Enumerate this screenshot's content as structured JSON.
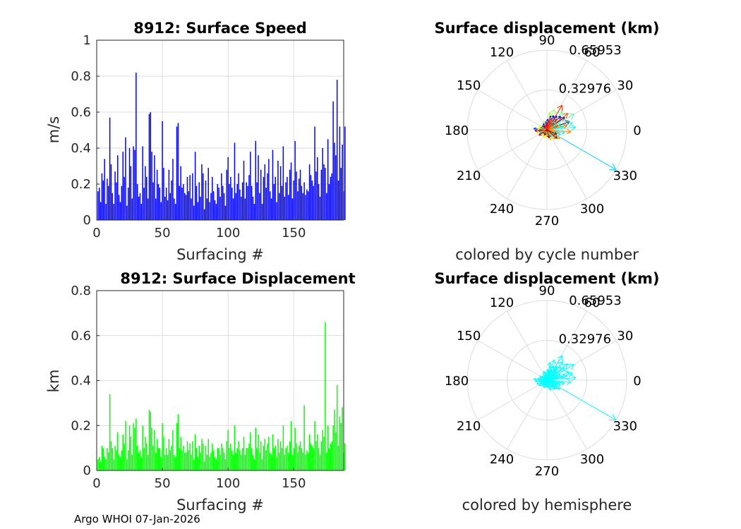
{
  "figure": {
    "footer": "Argo WHOI 07-Jan-2026",
    "colors": {
      "speed_bar": "#0000ff",
      "disp_bar": "#00ff00",
      "hemisphere_arrow": "#00ffff",
      "grid": "#dcdcdc"
    }
  },
  "chart_data": [
    {
      "id": "speed",
      "type": "bar",
      "title": "8912: Surface Speed",
      "xlabel": "Surfacing #",
      "ylabel": "m/s",
      "xlim": [
        0,
        188
      ],
      "ylim": [
        0,
        1
      ],
      "xticks": [
        0,
        50,
        100,
        150
      ],
      "yticks": [
        0,
        0.2,
        0.4,
        0.6,
        0.8,
        1
      ],
      "ytick_labels": [
        "0",
        "0.2",
        "0.4",
        "0.6",
        "0.8",
        "1"
      ],
      "grid": true,
      "values": [
        0.16,
        0.18,
        0.1,
        0.26,
        0.22,
        0.34,
        0.09,
        0.23,
        0.19,
        0.57,
        0.31,
        0.15,
        0.09,
        0.27,
        0.21,
        0.36,
        0.14,
        0.1,
        0.19,
        0.38,
        0.24,
        0.46,
        0.08,
        0.18,
        0.4,
        0.3,
        0.12,
        0.41,
        0.39,
        0.82,
        0.2,
        0.13,
        0.15,
        0.09,
        0.41,
        0.18,
        0.3,
        0.24,
        0.12,
        0.59,
        0.6,
        0.38,
        0.21,
        0.36,
        0.12,
        0.28,
        0.2,
        0.18,
        0.1,
        0.55,
        0.29,
        0.13,
        0.18,
        0.11,
        0.28,
        0.15,
        0.22,
        0.34,
        0.12,
        0.09,
        0.52,
        0.54,
        0.19,
        0.3,
        0.18,
        0.2,
        0.15,
        0.14,
        0.24,
        0.16,
        0.25,
        0.12,
        0.26,
        0.08,
        0.38,
        0.19,
        0.1,
        0.21,
        0.13,
        0.31,
        0.26,
        0.06,
        0.22,
        0.12,
        0.29,
        0.1,
        0.15,
        0.24,
        0.16,
        0.11,
        0.09,
        0.2,
        0.18,
        0.13,
        0.26,
        0.19,
        0.15,
        0.08,
        0.28,
        0.35,
        0.2,
        0.24,
        0.18,
        0.12,
        0.43,
        0.15,
        0.2,
        0.26,
        0.17,
        0.13,
        0.21,
        0.33,
        0.12,
        0.21,
        0.19,
        0.25,
        0.38,
        0.19,
        0.13,
        0.09,
        0.44,
        0.21,
        0.36,
        0.15,
        0.28,
        0.09,
        0.24,
        0.31,
        0.18,
        0.26,
        0.34,
        0.16,
        0.12,
        0.39,
        0.2,
        0.24,
        0.1,
        0.33,
        0.15,
        0.3,
        0.19,
        0.41,
        0.13,
        0.21,
        0.24,
        0.14,
        0.28,
        0.32,
        0.12,
        0.22,
        0.44,
        0.27,
        0.16,
        0.23,
        0.28,
        0.19,
        0.15,
        0.21,
        0.14,
        0.17,
        0.16,
        0.31,
        0.25,
        0.22,
        0.19,
        0.52,
        0.27,
        0.35,
        0.2,
        0.13,
        0.28,
        0.4,
        0.31,
        0.29,
        0.15,
        0.45,
        0.2,
        0.24,
        0.26,
        0.66,
        0.43,
        0.36,
        0.78,
        0.22,
        0.52,
        0.29,
        0.42,
        0.16,
        0.52
      ]
    },
    {
      "id": "displacement",
      "type": "bar",
      "title": "8912: Surface Displacement",
      "xlabel": "Surfacing #",
      "ylabel": "km",
      "xlim": [
        0,
        188
      ],
      "ylim": [
        0,
        0.8
      ],
      "xticks": [
        0,
        50,
        100,
        150
      ],
      "yticks": [
        0,
        0.2,
        0.4,
        0.6,
        0.8
      ],
      "ytick_labels": [
        "0",
        "0.2",
        "0.4",
        "0.6",
        "0.8"
      ],
      "grid": true,
      "values": [
        0.05,
        0.06,
        0.04,
        0.11,
        0.1,
        0.06,
        0.05,
        0.1,
        0.08,
        0.34,
        0.13,
        0.1,
        0.05,
        0.11,
        0.09,
        0.17,
        0.07,
        0.06,
        0.09,
        0.16,
        0.12,
        0.22,
        0.05,
        0.09,
        0.2,
        0.15,
        0.07,
        0.21,
        0.19,
        0.23,
        0.11,
        0.08,
        0.09,
        0.06,
        0.2,
        0.1,
        0.15,
        0.12,
        0.07,
        0.27,
        0.26,
        0.19,
        0.11,
        0.18,
        0.08,
        0.14,
        0.1,
        0.1,
        0.06,
        0.21,
        0.15,
        0.07,
        0.1,
        0.07,
        0.14,
        0.09,
        0.11,
        0.18,
        0.07,
        0.06,
        0.21,
        0.25,
        0.1,
        0.15,
        0.09,
        0.11,
        0.08,
        0.08,
        0.13,
        0.09,
        0.12,
        0.07,
        0.13,
        0.05,
        0.16,
        0.1,
        0.06,
        0.11,
        0.08,
        0.14,
        0.12,
        0.04,
        0.11,
        0.07,
        0.14,
        0.06,
        0.08,
        0.12,
        0.09,
        0.06,
        0.05,
        0.1,
        0.1,
        0.07,
        0.12,
        0.1,
        0.08,
        0.05,
        0.13,
        0.18,
        0.1,
        0.12,
        0.09,
        0.07,
        0.2,
        0.08,
        0.1,
        0.13,
        0.09,
        0.07,
        0.1,
        0.15,
        0.07,
        0.1,
        0.1,
        0.12,
        0.17,
        0.1,
        0.07,
        0.05,
        0.19,
        0.1,
        0.16,
        0.08,
        0.13,
        0.05,
        0.11,
        0.14,
        0.09,
        0.12,
        0.15,
        0.08,
        0.07,
        0.16,
        0.1,
        0.11,
        0.06,
        0.14,
        0.08,
        0.13,
        0.1,
        0.2,
        0.07,
        0.1,
        0.11,
        0.08,
        0.13,
        0.22,
        0.07,
        0.1,
        0.19,
        0.12,
        0.08,
        0.11,
        0.13,
        0.1,
        0.08,
        0.29,
        0.07,
        0.09,
        0.08,
        0.16,
        0.12,
        0.11,
        0.1,
        0.22,
        0.13,
        0.16,
        0.1,
        0.07,
        0.13,
        0.18,
        0.15,
        0.66,
        0.08,
        0.2,
        0.1,
        0.12,
        0.13,
        0.2,
        0.27,
        0.17,
        0.38,
        0.11,
        0.24,
        0.21,
        0.28,
        0.08,
        0.12
      ]
    },
    {
      "id": "polar-cycle",
      "type": "polar",
      "title": "Surface displacement (km)",
      "caption": "colored by cycle number",
      "rmax": 0.65953,
      "rticks": [
        0.32976,
        0.65953
      ],
      "rtick_labels": [
        "0.32976",
        "0.65953"
      ],
      "angle_labels": [
        "0",
        "30",
        "60",
        "90",
        "120",
        "150",
        "180",
        "210",
        "240",
        "270",
        "300",
        "330"
      ],
      "color_mode": "cycle",
      "vectors": [
        {
          "angle": 20,
          "length": 0.2
        },
        {
          "angle": 35,
          "length": 0.18
        },
        {
          "angle": 45,
          "length": 0.16
        },
        {
          "angle": 55,
          "length": 0.14
        },
        {
          "angle": 65,
          "length": 0.13
        },
        {
          "angle": 75,
          "length": 0.12
        },
        {
          "angle": 85,
          "length": 0.09
        },
        {
          "angle": 100,
          "length": 0.07
        },
        {
          "angle": 120,
          "length": 0.06
        },
        {
          "angle": 140,
          "length": 0.05
        },
        {
          "angle": 160,
          "length": 0.06
        },
        {
          "angle": 175,
          "length": 0.11
        },
        {
          "angle": 190,
          "length": 0.07
        },
        {
          "angle": 205,
          "length": 0.06
        },
        {
          "angle": 220,
          "length": 0.05
        },
        {
          "angle": 240,
          "length": 0.04
        },
        {
          "angle": 260,
          "length": 0.05
        },
        {
          "angle": 280,
          "length": 0.06
        },
        {
          "angle": 300,
          "length": 0.07
        },
        {
          "angle": 315,
          "length": 0.08
        },
        {
          "angle": 330,
          "length": 0.66
        },
        {
          "angle": 340,
          "length": 0.12
        },
        {
          "angle": 350,
          "length": 0.15
        },
        {
          "angle": 5,
          "length": 0.24
        },
        {
          "angle": 10,
          "length": 0.14
        },
        {
          "angle": 15,
          "length": 0.22
        },
        {
          "angle": 25,
          "length": 0.12
        },
        {
          "angle": 30,
          "length": 0.26
        },
        {
          "angle": 40,
          "length": 0.1
        },
        {
          "angle": 50,
          "length": 0.2
        },
        {
          "angle": 60,
          "length": 0.09
        },
        {
          "angle": 70,
          "length": 0.18
        },
        {
          "angle": 80,
          "length": 0.15
        },
        {
          "angle": 110,
          "length": 0.08
        },
        {
          "angle": 150,
          "length": 0.07
        },
        {
          "angle": 170,
          "length": 0.08
        },
        {
          "angle": 200,
          "length": 0.09
        },
        {
          "angle": 230,
          "length": 0.06
        },
        {
          "angle": 250,
          "length": 0.07
        },
        {
          "angle": 270,
          "length": 0.06
        },
        {
          "angle": 290,
          "length": 0.09
        },
        {
          "angle": 310,
          "length": 0.1
        },
        {
          "angle": 325,
          "length": 0.13
        },
        {
          "angle": 345,
          "length": 0.1
        },
        {
          "angle": 355,
          "length": 0.2
        },
        {
          "angle": 12,
          "length": 0.17
        },
        {
          "angle": 22,
          "length": 0.1
        },
        {
          "angle": 38,
          "length": 0.22
        },
        {
          "angle": 48,
          "length": 0.12
        },
        {
          "angle": 58,
          "length": 0.24
        },
        {
          "angle": 68,
          "length": 0.1
        },
        {
          "angle": 78,
          "length": 0.08
        },
        {
          "angle": 95,
          "length": 0.05
        },
        {
          "angle": 130,
          "length": 0.04
        },
        {
          "angle": 185,
          "length": 0.1
        },
        {
          "angle": 215,
          "length": 0.08
        },
        {
          "angle": 245,
          "length": 0.05
        },
        {
          "angle": 285,
          "length": 0.07
        },
        {
          "angle": 320,
          "length": 0.11
        },
        {
          "angle": 335,
          "length": 0.09
        }
      ]
    },
    {
      "id": "polar-hemisphere",
      "type": "polar",
      "title": "Surface displacement (km)",
      "caption": "colored by hemisphere",
      "rmax": 0.65953,
      "rticks": [
        0.32976,
        0.65953
      ],
      "rtick_labels": [
        "0.32976",
        "0.65953"
      ],
      "angle_labels": [
        "0",
        "30",
        "60",
        "90",
        "120",
        "150",
        "180",
        "210",
        "240",
        "270",
        "300",
        "330"
      ],
      "color_mode": "hemisphere",
      "vectors": [
        {
          "angle": 20,
          "length": 0.2
        },
        {
          "angle": 35,
          "length": 0.18
        },
        {
          "angle": 45,
          "length": 0.16
        },
        {
          "angle": 55,
          "length": 0.14
        },
        {
          "angle": 65,
          "length": 0.13
        },
        {
          "angle": 75,
          "length": 0.12
        },
        {
          "angle": 85,
          "length": 0.09
        },
        {
          "angle": 100,
          "length": 0.07
        },
        {
          "angle": 120,
          "length": 0.06
        },
        {
          "angle": 140,
          "length": 0.05
        },
        {
          "angle": 160,
          "length": 0.06
        },
        {
          "angle": 175,
          "length": 0.11
        },
        {
          "angle": 190,
          "length": 0.07
        },
        {
          "angle": 205,
          "length": 0.06
        },
        {
          "angle": 220,
          "length": 0.05
        },
        {
          "angle": 240,
          "length": 0.04
        },
        {
          "angle": 260,
          "length": 0.05
        },
        {
          "angle": 280,
          "length": 0.06
        },
        {
          "angle": 300,
          "length": 0.07
        },
        {
          "angle": 315,
          "length": 0.08
        },
        {
          "angle": 330,
          "length": 0.66
        },
        {
          "angle": 340,
          "length": 0.12
        },
        {
          "angle": 350,
          "length": 0.15
        },
        {
          "angle": 5,
          "length": 0.24
        },
        {
          "angle": 10,
          "length": 0.14
        },
        {
          "angle": 15,
          "length": 0.22
        },
        {
          "angle": 25,
          "length": 0.12
        },
        {
          "angle": 30,
          "length": 0.26
        },
        {
          "angle": 40,
          "length": 0.1
        },
        {
          "angle": 50,
          "length": 0.2
        },
        {
          "angle": 60,
          "length": 0.09
        },
        {
          "angle": 70,
          "length": 0.18
        },
        {
          "angle": 80,
          "length": 0.15
        },
        {
          "angle": 110,
          "length": 0.08
        },
        {
          "angle": 150,
          "length": 0.07
        },
        {
          "angle": 170,
          "length": 0.08
        },
        {
          "angle": 200,
          "length": 0.09
        },
        {
          "angle": 230,
          "length": 0.06
        },
        {
          "angle": 250,
          "length": 0.07
        },
        {
          "angle": 270,
          "length": 0.06
        },
        {
          "angle": 290,
          "length": 0.09
        },
        {
          "angle": 310,
          "length": 0.1
        },
        {
          "angle": 325,
          "length": 0.13
        },
        {
          "angle": 345,
          "length": 0.1
        },
        {
          "angle": 355,
          "length": 0.2
        },
        {
          "angle": 12,
          "length": 0.17
        },
        {
          "angle": 22,
          "length": 0.1
        },
        {
          "angle": 38,
          "length": 0.22
        },
        {
          "angle": 48,
          "length": 0.12
        },
        {
          "angle": 58,
          "length": 0.24
        },
        {
          "angle": 68,
          "length": 0.1
        },
        {
          "angle": 78,
          "length": 0.08
        },
        {
          "angle": 95,
          "length": 0.05
        },
        {
          "angle": 130,
          "length": 0.04
        },
        {
          "angle": 185,
          "length": 0.1
        },
        {
          "angle": 215,
          "length": 0.08
        },
        {
          "angle": 245,
          "length": 0.05
        },
        {
          "angle": 285,
          "length": 0.07
        },
        {
          "angle": 320,
          "length": 0.11
        },
        {
          "angle": 335,
          "length": 0.09
        }
      ]
    }
  ]
}
